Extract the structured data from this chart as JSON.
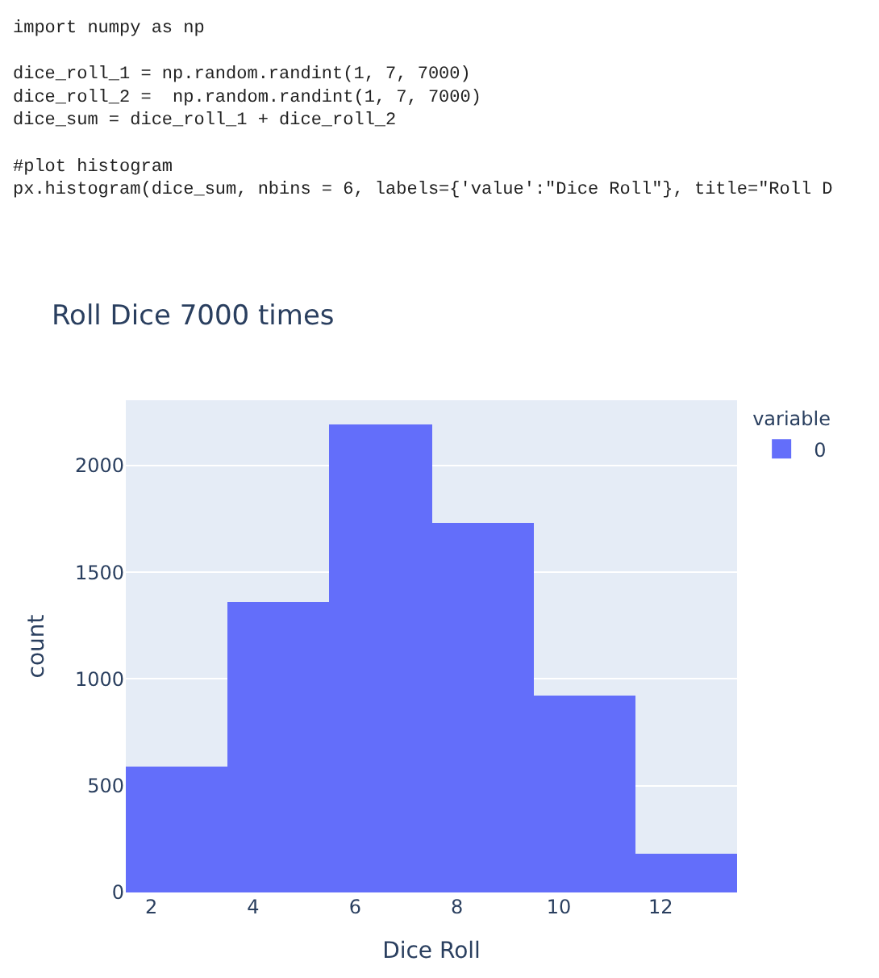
{
  "chart_data": {
    "type": "histogram",
    "title": "Roll Dice 7000 times",
    "xlabel": "Dice Roll",
    "ylabel": "count",
    "legend_title": "variable",
    "annotations": [
      "import numpy as np\n\ndice_roll_1 = np.random.randint(1, 7, 7000)\ndice_roll_2 =  np.random.randint(1, 7, 7000)\ndice_sum = dice_roll_1 + dice_roll_2\n\n#plot histogram\npx.histogram(dice_sum, nbins = 6, labels={'value':\"Dice Roll\"}, title=\"Roll D"
    ],
    "bins": [
      1.5,
      3.5,
      5.5,
      7.5,
      9.5,
      11.5,
      13.5
    ],
    "series": [
      {
        "name": "0",
        "color": "#636efa",
        "values": [
          592,
          1361,
          2194,
          1734,
          925,
          179
        ]
      }
    ],
    "xlim": [
      1.5,
      13.5
    ],
    "xticks": [
      2,
      4,
      6,
      8,
      10,
      12
    ],
    "ylim": [
      0,
      2306
    ],
    "yticks": [
      0,
      500,
      1000,
      1500,
      2000
    ],
    "grid": "y",
    "legend": "top right"
  }
}
